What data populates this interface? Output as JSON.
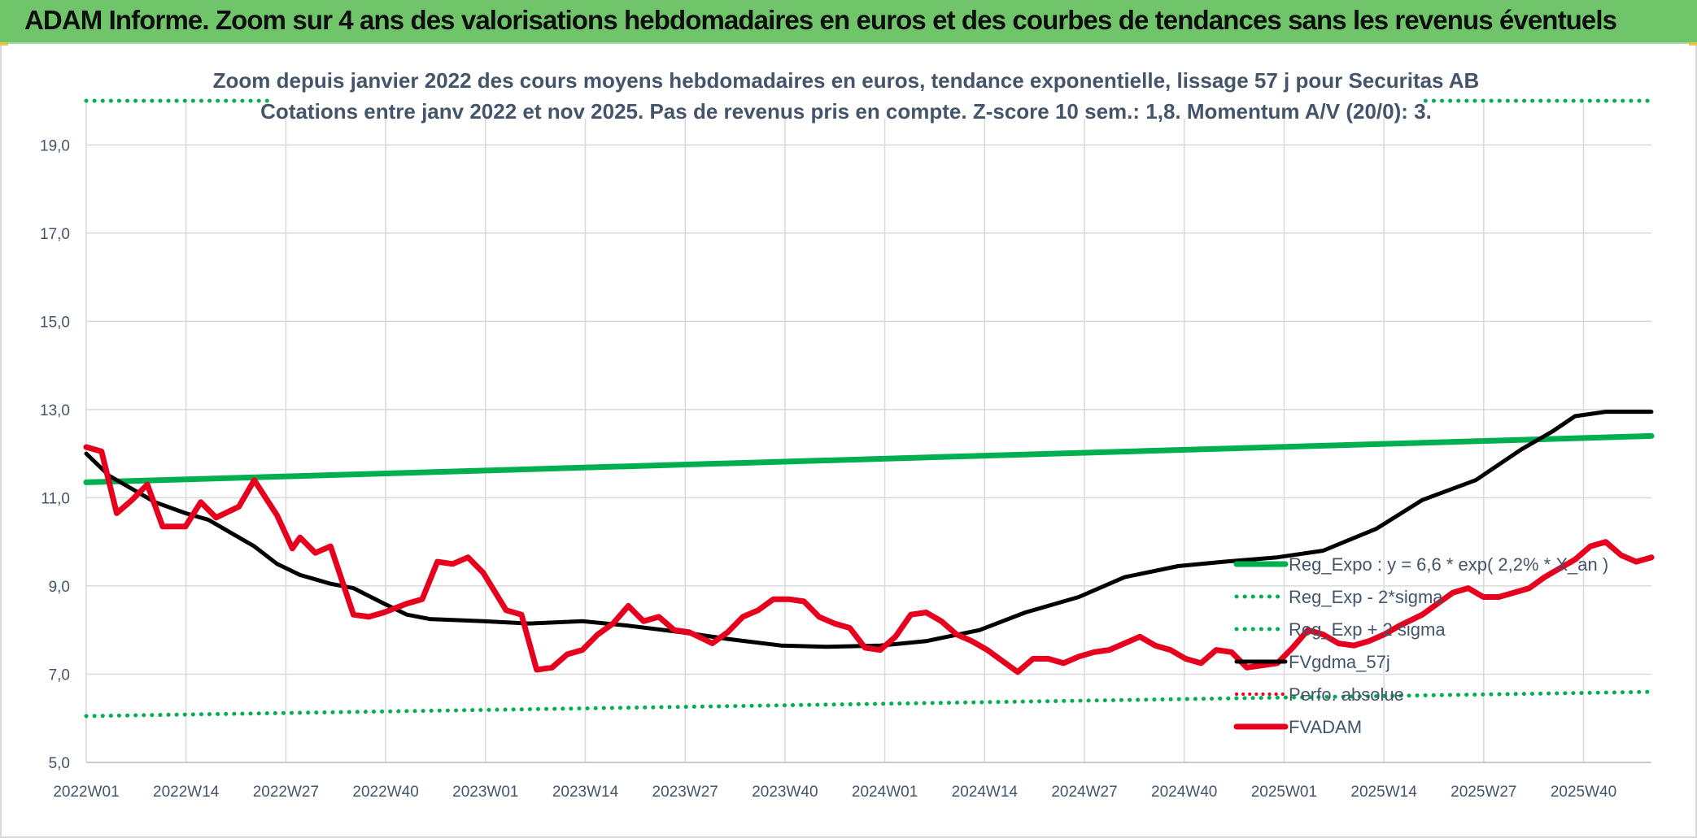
{
  "banner": {
    "title": "ADAM Informe. Zoom sur 4 ans des valorisations hebdomadaires en euros et des courbes de tendances sans les revenus éventuels"
  },
  "colors": {
    "banner": "#70c46a",
    "regression": "#00b050",
    "moving_average": "#000000",
    "price": "#e6001e",
    "perf": "#e6001e",
    "grid": "#d9d9d9",
    "text": "#44546a"
  },
  "chart_data": {
    "type": "line",
    "title": "Zoom depuis janvier 2022 des cours moyens hebdomadaires en euros, tendance exponentielle, lissage 57 j pour Securitas AB",
    "subtitle": "Cotations entre janv 2022 et nov 2025. Pas de revenus pris en compte. Z-score 10 sem.: 1,8. Momentum A/V (20/0): 3.",
    "xlabel": "",
    "ylabel": "",
    "ylim": [
      5,
      20
    ],
    "y_ticks": [
      "5,0",
      "7,0",
      "9,0",
      "11,0",
      "13,0",
      "15,0",
      "17,0",
      "19,0"
    ],
    "x_ticks": [
      "2022W01",
      "2022W14",
      "2022W27",
      "2022W40",
      "2023W01",
      "2023W14",
      "2023W27",
      "2023W40",
      "2024W01",
      "2024W14",
      "2024W27",
      "2024W40",
      "2025W01",
      "2025W14",
      "2025W27",
      "2025W40"
    ],
    "grid": true,
    "legend_position": "right",
    "series": [
      {
        "name": "Reg_Expo : y = 6,6 * exp( 2,2% *  X_an )",
        "style": "solid-thick",
        "points": [
          [
            0,
            11.35
          ],
          [
            205,
            12.4
          ]
        ]
      },
      {
        "name": "Reg_Exp - 2*sigma",
        "style": "dotted",
        "points": [
          [
            0,
            6.05
          ],
          [
            205,
            6.6
          ]
        ]
      },
      {
        "name": "Reg_Exp + 2 sigma",
        "style": "dotted",
        "points": [
          [
            0,
            20.0
          ],
          [
            205,
            20.0
          ]
        ]
      },
      {
        "name": "FVgdma_57j",
        "style": "solid",
        "points": [
          [
            0,
            12.0
          ],
          [
            3,
            11.5
          ],
          [
            6,
            11.2
          ],
          [
            9,
            10.9
          ],
          [
            13,
            10.65
          ],
          [
            16,
            10.5
          ],
          [
            19,
            10.2
          ],
          [
            22,
            9.9
          ],
          [
            25,
            9.5
          ],
          [
            28,
            9.25
          ],
          [
            32,
            9.05
          ],
          [
            35,
            8.95
          ],
          [
            39,
            8.6
          ],
          [
            42,
            8.35
          ],
          [
            45,
            8.25
          ],
          [
            52,
            8.2
          ],
          [
            58,
            8.15
          ],
          [
            65,
            8.2
          ],
          [
            71,
            8.1
          ],
          [
            78,
            7.95
          ],
          [
            84,
            7.8
          ],
          [
            91,
            7.65
          ],
          [
            97,
            7.62
          ],
          [
            104,
            7.65
          ],
          [
            110,
            7.75
          ],
          [
            117,
            8.0
          ],
          [
            123,
            8.4
          ],
          [
            130,
            8.75
          ],
          [
            136,
            9.2
          ],
          [
            143,
            9.45
          ],
          [
            149,
            9.55
          ],
          [
            156,
            9.65
          ],
          [
            162,
            9.8
          ],
          [
            169,
            10.3
          ],
          [
            175,
            10.95
          ],
          [
            182,
            11.4
          ],
          [
            188,
            12.1
          ],
          [
            192,
            12.5
          ],
          [
            195,
            12.85
          ],
          [
            199,
            12.95
          ],
          [
            205,
            12.95
          ]
        ]
      },
      {
        "name": "Perfo. absolue",
        "style": "dotted",
        "points": []
      },
      {
        "name": "FVADAM",
        "style": "solid-thick",
        "points": [
          [
            0,
            12.15
          ],
          [
            2,
            12.05
          ],
          [
            4,
            10.65
          ],
          [
            6,
            10.95
          ],
          [
            8,
            11.3
          ],
          [
            10,
            10.35
          ],
          [
            13,
            10.35
          ],
          [
            15,
            10.9
          ],
          [
            17,
            10.55
          ],
          [
            20,
            10.8
          ],
          [
            22,
            11.4
          ],
          [
            25,
            10.6
          ],
          [
            27,
            9.85
          ],
          [
            28,
            10.1
          ],
          [
            30,
            9.75
          ],
          [
            32,
            9.9
          ],
          [
            35,
            8.35
          ],
          [
            37,
            8.3
          ],
          [
            39,
            8.4
          ],
          [
            42,
            8.6
          ],
          [
            44,
            8.7
          ],
          [
            46,
            9.55
          ],
          [
            48,
            9.5
          ],
          [
            50,
            9.65
          ],
          [
            52,
            9.3
          ],
          [
            55,
            8.45
          ],
          [
            57,
            8.35
          ],
          [
            59,
            7.1
          ],
          [
            61,
            7.15
          ],
          [
            63,
            7.45
          ],
          [
            65,
            7.55
          ],
          [
            67,
            7.9
          ],
          [
            69,
            8.15
          ],
          [
            71,
            8.55
          ],
          [
            73,
            8.2
          ],
          [
            75,
            8.3
          ],
          [
            77,
            8.0
          ],
          [
            79,
            7.95
          ],
          [
            82,
            7.7
          ],
          [
            84,
            7.95
          ],
          [
            86,
            8.3
          ],
          [
            88,
            8.45
          ],
          [
            90,
            8.7
          ],
          [
            92,
            8.7
          ],
          [
            94,
            8.65
          ],
          [
            96,
            8.3
          ],
          [
            98,
            8.15
          ],
          [
            100,
            8.05
          ],
          [
            102,
            7.6
          ],
          [
            104,
            7.55
          ],
          [
            106,
            7.85
          ],
          [
            108,
            8.35
          ],
          [
            110,
            8.4
          ],
          [
            112,
            8.2
          ],
          [
            114,
            7.9
          ],
          [
            116,
            7.75
          ],
          [
            118,
            7.55
          ],
          [
            120,
            7.3
          ],
          [
            122,
            7.05
          ],
          [
            124,
            7.35
          ],
          [
            126,
            7.35
          ],
          [
            128,
            7.25
          ],
          [
            130,
            7.4
          ],
          [
            132,
            7.5
          ],
          [
            134,
            7.55
          ],
          [
            136,
            7.7
          ],
          [
            138,
            7.85
          ],
          [
            140,
            7.65
          ],
          [
            142,
            7.55
          ],
          [
            144,
            7.35
          ],
          [
            146,
            7.25
          ],
          [
            148,
            7.55
          ],
          [
            150,
            7.5
          ],
          [
            152,
            7.15
          ],
          [
            154,
            7.2
          ],
          [
            156,
            7.25
          ],
          [
            158,
            7.6
          ],
          [
            160,
            8.0
          ],
          [
            162,
            7.9
          ],
          [
            164,
            7.7
          ],
          [
            166,
            7.65
          ],
          [
            168,
            7.75
          ],
          [
            170,
            7.9
          ],
          [
            172,
            8.1
          ],
          [
            175,
            8.35
          ],
          [
            177,
            8.6
          ],
          [
            179,
            8.85
          ],
          [
            181,
            8.95
          ],
          [
            183,
            8.75
          ],
          [
            185,
            8.75
          ],
          [
            187,
            8.85
          ],
          [
            189,
            8.95
          ],
          [
            191,
            9.2
          ],
          [
            193,
            9.4
          ],
          [
            195,
            9.6
          ],
          [
            197,
            9.9
          ],
          [
            199,
            10.0
          ],
          [
            201,
            9.7
          ],
          [
            203,
            9.55
          ],
          [
            205,
            9.65
          ]
        ]
      }
    ]
  },
  "legend": [
    {
      "label": "Reg_Expo : y = 6,6 * exp( 2,2% *  X_an )",
      "style": "solid-thick",
      "color": "#00b050"
    },
    {
      "label": "Reg_Exp - 2*sigma",
      "style": "dotted",
      "color": "#00b050"
    },
    {
      "label": "Reg_Exp + 2 sigma",
      "style": "dotted",
      "color": "#00b050"
    },
    {
      "label": "FVgdma_57j",
      "style": "solid",
      "color": "#000000"
    },
    {
      "label": "Perfo. absolue",
      "style": "dotted",
      "color": "#e6001e"
    },
    {
      "label": "FVADAM",
      "style": "solid-thick",
      "color": "#e6001e"
    }
  ]
}
